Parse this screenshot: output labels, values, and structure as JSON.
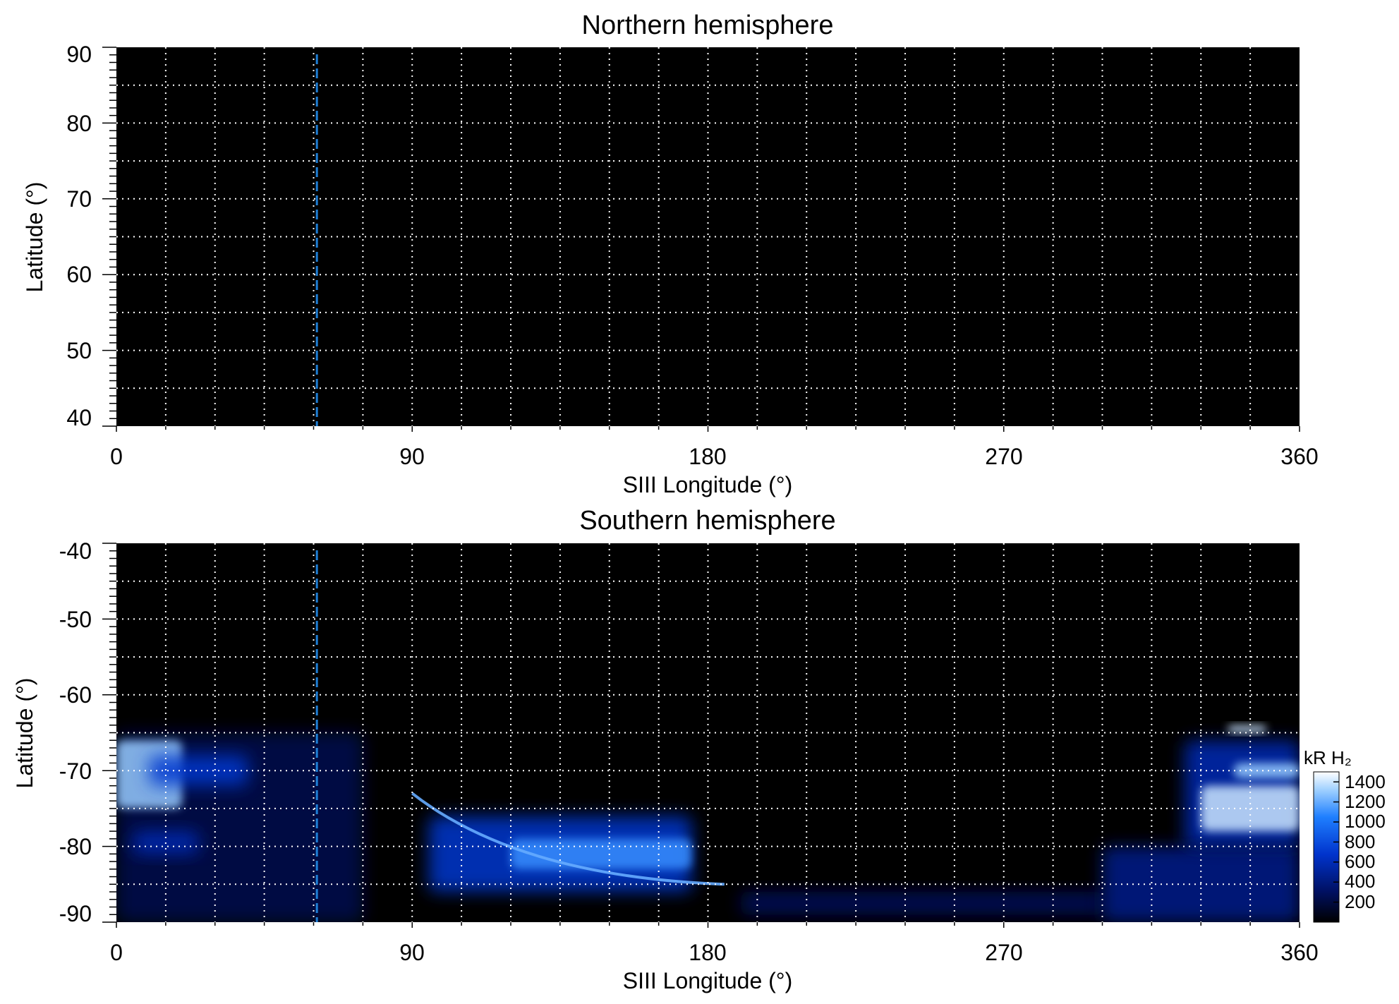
{
  "chart_data": [
    {
      "type": "heatmap",
      "title": "Northern hemisphere",
      "xlabel": "SIII Longitude (°)",
      "ylabel": "Latitude (°)",
      "xlim": [
        0,
        360
      ],
      "ylim": [
        40,
        90
      ],
      "x_ticks": [
        0,
        90,
        180,
        270,
        360
      ],
      "y_ticks": [
        90,
        80,
        70,
        60,
        50,
        40
      ],
      "x_tick_labels": [
        "0",
        "90",
        "180",
        "270",
        "360"
      ],
      "y_tick_labels": [
        "90",
        "80",
        "70",
        "60",
        "50",
        "40"
      ],
      "grid": true,
      "grid_x_step": 15,
      "grid_y_step": 5,
      "grid_style": "white dotted",
      "background_color": "#000000",
      "reference_line": {
        "longitude": 61,
        "color": "#1e7fd6",
        "style": "dashed"
      },
      "emission_regions": []
    },
    {
      "type": "heatmap",
      "title": "Southern hemisphere",
      "xlabel": "SIII Longitude (°)",
      "ylabel": "Latitude (°)",
      "xlim": [
        0,
        360
      ],
      "ylim": [
        -90,
        -40
      ],
      "x_ticks": [
        0,
        90,
        180,
        270,
        360
      ],
      "y_ticks": [
        -40,
        -50,
        -60,
        -70,
        -80,
        -90
      ],
      "x_tick_labels": [
        "0",
        "90",
        "180",
        "270",
        "360"
      ],
      "y_tick_labels": [
        "-40",
        "-50",
        "-60",
        "-70",
        "-80",
        "-90"
      ],
      "grid": true,
      "grid_x_step": 15,
      "grid_y_step": 5,
      "grid_style": "white dotted",
      "background_color": "#000000",
      "reference_line": {
        "longitude": 61,
        "color": "#1e7fd6",
        "style": "dashed"
      },
      "emission_regions": [
        {
          "lon": [
            0,
            75
          ],
          "lat": [
            -90,
            -65
          ],
          "intensity": 250
        },
        {
          "lon": [
            0,
            20
          ],
          "lat": [
            -75,
            -66
          ],
          "intensity": 1300
        },
        {
          "lon": [
            10,
            40
          ],
          "lat": [
            -72,
            -68
          ],
          "intensity": 700
        },
        {
          "lon": [
            5,
            25
          ],
          "lat": [
            -81,
            -78
          ],
          "intensity": 600
        },
        {
          "lon": [
            95,
            175
          ],
          "lat": [
            -86,
            -76
          ],
          "intensity": 700
        },
        {
          "lon": [
            120,
            175
          ],
          "lat": [
            -83,
            -79
          ],
          "intensity": 1100
        },
        {
          "lon": [
            190,
            300
          ],
          "lat": [
            -89,
            -86
          ],
          "intensity": 300
        },
        {
          "lon": [
            300,
            360
          ],
          "lat": [
            -90,
            -80
          ],
          "intensity": 450
        },
        {
          "lon": [
            325,
            360
          ],
          "lat": [
            -80,
            -66
          ],
          "intensity": 600
        },
        {
          "lon": [
            330,
            360
          ],
          "lat": [
            -78,
            -72
          ],
          "intensity": 1400
        },
        {
          "lon": [
            338,
            350
          ],
          "lat": [
            -65,
            -64
          ],
          "intensity": 1400
        },
        {
          "lon": [
            340,
            360
          ],
          "lat": [
            -71,
            -69
          ],
          "intensity": 1300
        }
      ],
      "arcs": [
        {
          "lon": [
            90,
            185
          ],
          "lat": [
            -73,
            -85
          ],
          "intensity": 1200
        }
      ],
      "colorbar": {
        "label": "kR H₂",
        "min": 0,
        "max": 1500,
        "ticks": [
          200,
          400,
          600,
          800,
          1000,
          1200,
          1400
        ],
        "tick_labels": [
          "200",
          "400",
          "600",
          "800",
          "1000",
          "1200",
          "1400"
        ],
        "colors": [
          "#000000",
          "#001060",
          "#0033cc",
          "#1f7fff",
          "#9fd0ff",
          "#ffffff"
        ]
      }
    }
  ]
}
